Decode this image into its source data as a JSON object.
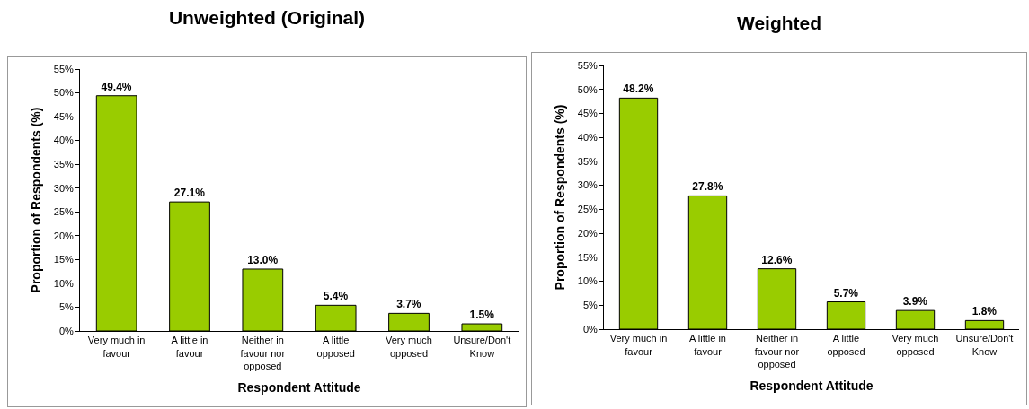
{
  "chart_data": [
    {
      "type": "bar",
      "title": "Unweighted (Original)",
      "xlabel": "Respondent Attitude",
      "ylabel": "Proportion of Respondents (%)",
      "categories": [
        "Very much in favour",
        "A little in favour",
        "Neither in favour nor opposed",
        "A little opposed",
        "Very much opposed",
        "Unsure/Don't Know"
      ],
      "values": [
        49.4,
        27.1,
        13.0,
        5.4,
        3.7,
        1.5
      ],
      "value_labels": [
        "49.4%",
        "27.1%",
        "13.0%",
        "5.4%",
        "3.7%",
        "1.5%"
      ],
      "color": "#99cc00",
      "ylim": [
        0,
        55
      ],
      "yticks": [
        {
          "value": 0,
          "label": "0%"
        },
        {
          "value": 5,
          "label": "5%"
        },
        {
          "value": 10,
          "label": "10%"
        },
        {
          "value": 15,
          "label": "15%"
        },
        {
          "value": 20,
          "label": "20%"
        },
        {
          "value": 25,
          "label": "25%"
        },
        {
          "value": 30,
          "label": "30%"
        },
        {
          "value": 35,
          "label": "35%"
        },
        {
          "value": 40,
          "label": "40%"
        },
        {
          "value": 45,
          "label": "45%"
        },
        {
          "value": 50,
          "label": "50%"
        },
        {
          "value": 55,
          "label": "55%"
        }
      ]
    },
    {
      "type": "bar",
      "title": "Weighted",
      "xlabel": "Respondent Attitude",
      "ylabel": "Proportion of Respondents (%)",
      "categories": [
        "Very much in favour",
        "A little in favour",
        "Neither in favour nor opposed",
        "A little opposed",
        "Very much opposed",
        "Unsure/Don't Know"
      ],
      "values": [
        48.2,
        27.8,
        12.6,
        5.7,
        3.9,
        1.8
      ],
      "value_labels": [
        "48.2%",
        "27.8%",
        "12.6%",
        "5.7%",
        "3.9%",
        "1.8%"
      ],
      "color": "#99cc00",
      "ylim": [
        0,
        55
      ],
      "yticks": [
        {
          "value": 0,
          "label": "0%"
        },
        {
          "value": 5,
          "label": "5%"
        },
        {
          "value": 10,
          "label": "10%"
        },
        {
          "value": 15,
          "label": "15%"
        },
        {
          "value": 20,
          "label": "20%"
        },
        {
          "value": 25,
          "label": "25%"
        },
        {
          "value": 30,
          "label": "30%"
        },
        {
          "value": 35,
          "label": "35%"
        },
        {
          "value": 40,
          "label": "40%"
        },
        {
          "value": 45,
          "label": "45%"
        },
        {
          "value": 50,
          "label": "50%"
        },
        {
          "value": 55,
          "label": "55%"
        }
      ]
    }
  ]
}
